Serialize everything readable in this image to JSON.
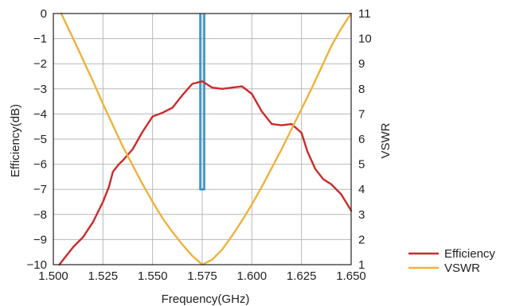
{
  "chart_data": {
    "type": "line",
    "xlabel": "Frequency(GHz)",
    "ylabel_left": "Efficiency(dB)",
    "ylabel_right": "VSWR",
    "xlim": [
      1.5,
      1.65
    ],
    "ylim_left": [
      -10,
      0
    ],
    "ylim_right": [
      1,
      11
    ],
    "x_ticks": [
      "1.500",
      "1.525",
      "1.550",
      "1.575",
      "1.600",
      "1.625",
      "1.650"
    ],
    "y_left_ticks": [
      "0",
      "−1",
      "−2",
      "−3",
      "−4",
      "−5",
      "−6",
      "−7",
      "−8",
      "−9",
      "−10"
    ],
    "y_right_ticks": [
      "11",
      "10",
      "9",
      "8",
      "7",
      "6",
      "5",
      "4",
      "3",
      "2",
      "1"
    ],
    "grid": true,
    "legend_position": "bottom-right",
    "series": [
      {
        "name": "Efficiency",
        "axis": "left",
        "color": "#cc2b2b",
        "points": [
          [
            1.503,
            -10
          ],
          [
            1.51,
            -9.3
          ],
          [
            1.515,
            -8.9
          ],
          [
            1.52,
            -8.3
          ],
          [
            1.525,
            -7.5
          ],
          [
            1.528,
            -6.9
          ],
          [
            1.53,
            -6.3
          ],
          [
            1.533,
            -6.0
          ],
          [
            1.535,
            -5.85
          ],
          [
            1.54,
            -5.4
          ],
          [
            1.545,
            -4.7
          ],
          [
            1.55,
            -4.1
          ],
          [
            1.555,
            -3.95
          ],
          [
            1.56,
            -3.75
          ],
          [
            1.565,
            -3.25
          ],
          [
            1.57,
            -2.8
          ],
          [
            1.575,
            -2.7
          ],
          [
            1.58,
            -2.95
          ],
          [
            1.585,
            -3.0
          ],
          [
            1.59,
            -2.95
          ],
          [
            1.595,
            -2.9
          ],
          [
            1.6,
            -3.2
          ],
          [
            1.605,
            -3.9
          ],
          [
            1.61,
            -4.4
          ],
          [
            1.615,
            -4.45
          ],
          [
            1.62,
            -4.4
          ],
          [
            1.625,
            -4.75
          ],
          [
            1.628,
            -5.5
          ],
          [
            1.632,
            -6.2
          ],
          [
            1.636,
            -6.6
          ],
          [
            1.64,
            -6.8
          ],
          [
            1.645,
            -7.2
          ],
          [
            1.65,
            -7.85
          ]
        ]
      },
      {
        "name": "VSWR",
        "axis": "right",
        "color": "#f0b23a",
        "points": [
          [
            1.504,
            11
          ],
          [
            1.51,
            10.0
          ],
          [
            1.515,
            9.15
          ],
          [
            1.52,
            8.3
          ],
          [
            1.525,
            7.4
          ],
          [
            1.53,
            6.55
          ],
          [
            1.535,
            5.7
          ],
          [
            1.54,
            4.95
          ],
          [
            1.545,
            4.2
          ],
          [
            1.55,
            3.5
          ],
          [
            1.555,
            2.85
          ],
          [
            1.56,
            2.3
          ],
          [
            1.565,
            1.8
          ],
          [
            1.57,
            1.35
          ],
          [
            1.575,
            1.0
          ],
          [
            1.58,
            1.2
          ],
          [
            1.585,
            1.6
          ],
          [
            1.59,
            2.15
          ],
          [
            1.595,
            2.75
          ],
          [
            1.6,
            3.4
          ],
          [
            1.605,
            4.1
          ],
          [
            1.61,
            4.85
          ],
          [
            1.615,
            5.6
          ],
          [
            1.62,
            6.4
          ],
          [
            1.625,
            7.2
          ],
          [
            1.63,
            8.0
          ],
          [
            1.635,
            8.85
          ],
          [
            1.64,
            9.7
          ],
          [
            1.645,
            10.4
          ],
          [
            1.65,
            11
          ]
        ]
      }
    ],
    "markers": [
      {
        "axis": "right",
        "color": "#2e8fc8",
        "x_range": [
          1.574,
          1.576
        ],
        "y_range": [
          4,
          11
        ]
      }
    ]
  }
}
